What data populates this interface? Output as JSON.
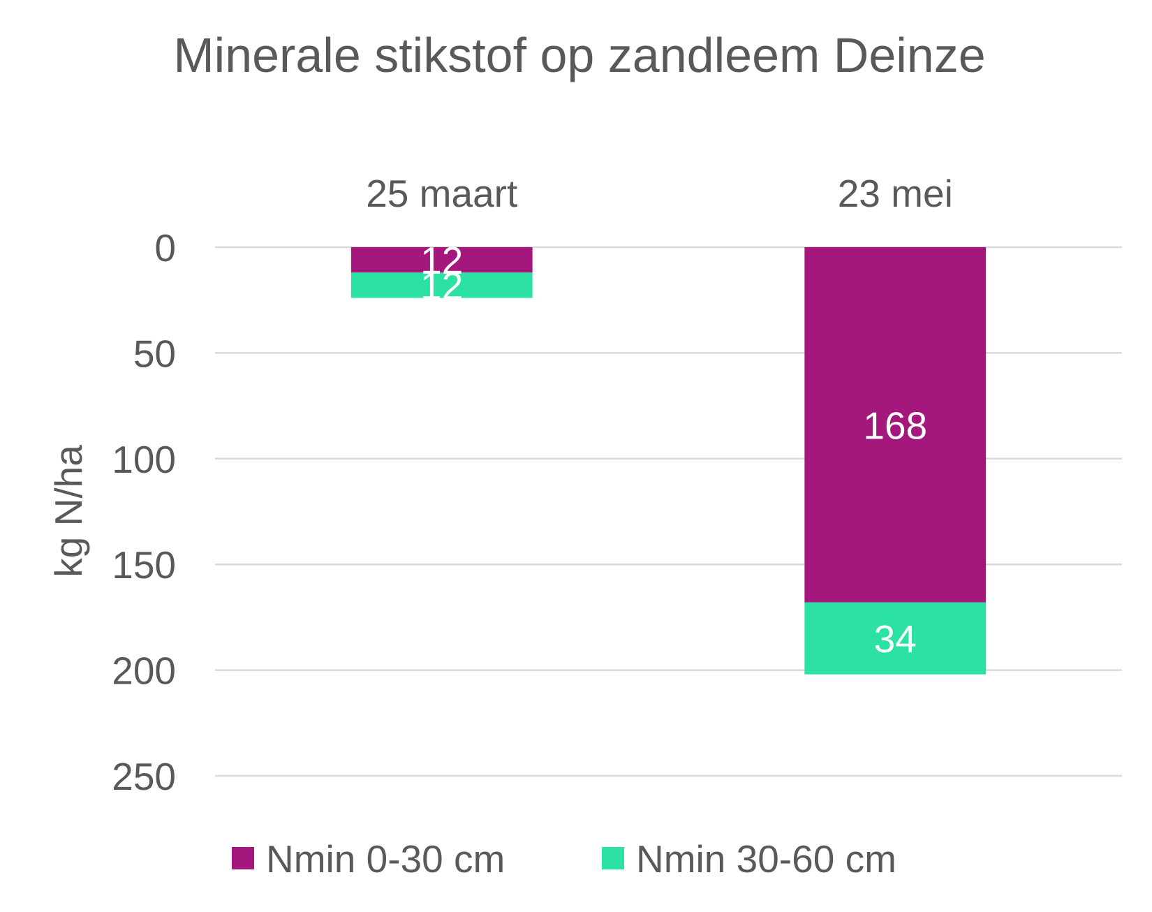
{
  "chart_data": {
    "type": "bar",
    "stacked": true,
    "orientation": "vertical",
    "y_axis_inverted": true,
    "x_axis_position": "top",
    "title": "Minerale stikstof op zandleem Deinze",
    "xlabel": "",
    "ylabel": "kg N/ha",
    "ylim": [
      0,
      250
    ],
    "yticks": [
      "0",
      "50",
      "100",
      "150",
      "200",
      "250"
    ],
    "grid": true,
    "legend_position": "bottom",
    "categories": [
      "25 maart",
      "23 mei"
    ],
    "series": [
      {
        "name": "Nmin 0-30 cm",
        "color": "#A4177C",
        "values": [
          12,
          168
        ],
        "labels": [
          "12",
          "168"
        ]
      },
      {
        "name": "Nmin 30-60 cm",
        "color": "#2BE2A4",
        "values": [
          12,
          34
        ],
        "labels": [
          "12",
          "34"
        ]
      }
    ]
  }
}
